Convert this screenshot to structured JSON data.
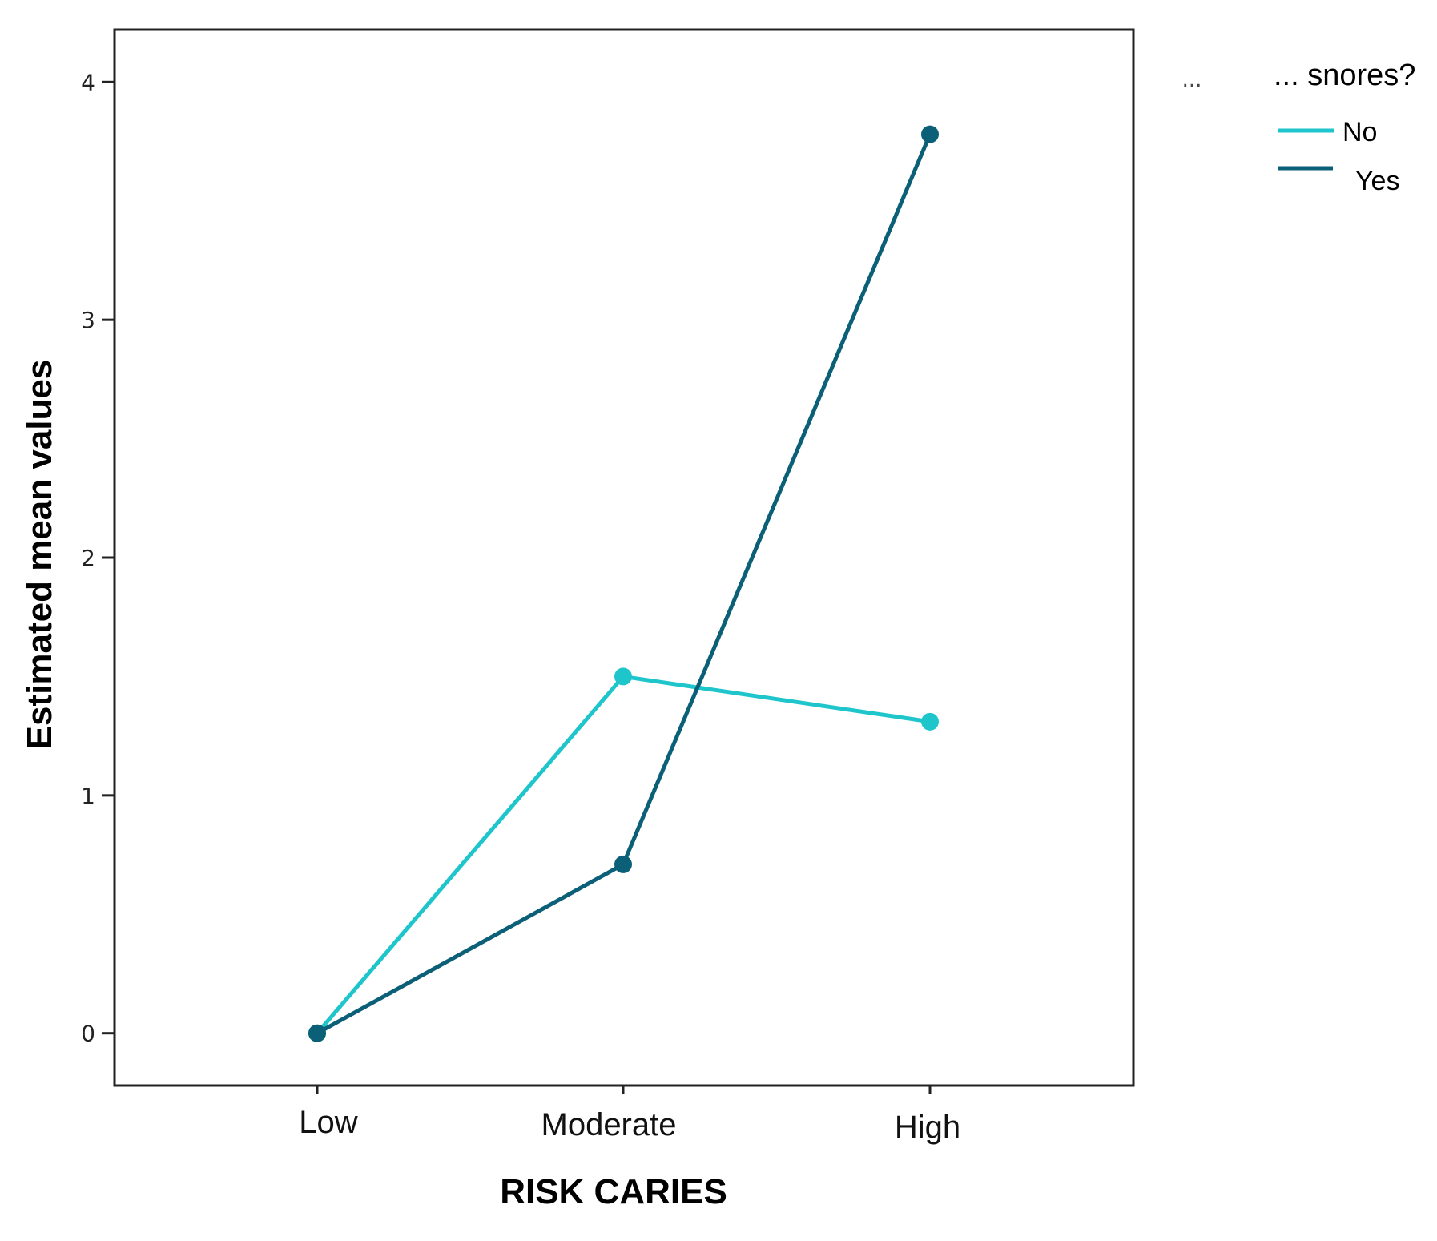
{
  "chart_data": {
    "type": "line",
    "title": "",
    "xlabel": "RISK CARIES",
    "ylabel": "Estimated mean values",
    "categories": [
      "Low",
      "Moderate",
      "High"
    ],
    "yticks": [
      "0",
      "1",
      "2",
      "3",
      "4"
    ],
    "ylim": [
      -0.22,
      4.22
    ],
    "grid": false,
    "legend": {
      "placement": "right",
      "prefix": "...",
      "title": "... snores?"
    },
    "series": [
      {
        "name": "No",
        "color": "#1ec6cc",
        "values": [
          0,
          1.5,
          1.31
        ]
      },
      {
        "name": "Yes",
        "color": "#0b6078",
        "values": [
          0,
          0.71,
          3.78
        ]
      }
    ]
  }
}
